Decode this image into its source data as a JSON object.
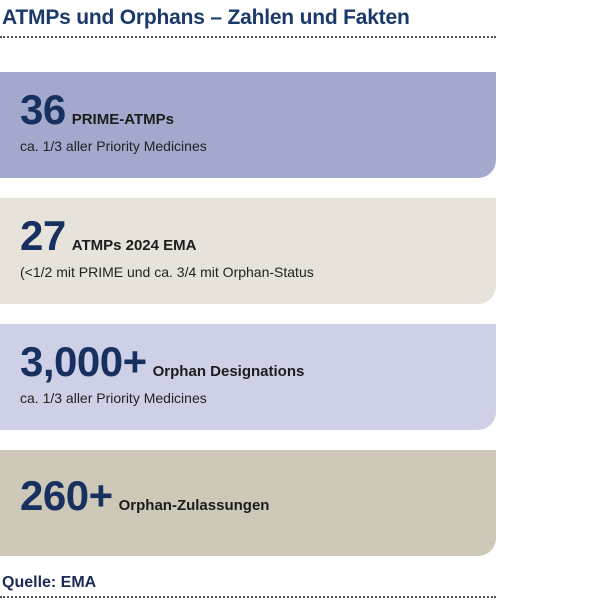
{
  "title": "ATMPs und Orphans – Zahlen und Fakten",
  "cards": [
    {
      "number": "36",
      "label": "PRIME-ATMPs",
      "subtitle": "ca. 1/3 aller Priority Medicines",
      "color": "#a2a9cd"
    },
    {
      "number": "27",
      "label": "ATMPs 2024 EMA",
      "subtitle": "(<1/2 mit PRIME und ca. 3/4 mit Orphan-Status",
      "color": "#e8e3da"
    },
    {
      "number": "3,000+",
      "label": "Orphan Designations",
      "subtitle": "ca. 1/3 aller Priority Medicines",
      "color": "#cdd0e7"
    },
    {
      "number": "260+",
      "label": "Orphan-Zulassungen",
      "color": "#cdc8b8"
    }
  ],
  "source": "Quelle: EMA"
}
